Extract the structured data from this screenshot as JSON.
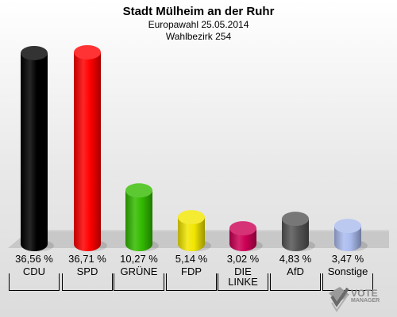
{
  "header": {
    "title": "Stadt Mülheim an der Ruhr",
    "subtitle1": "Europawahl 25.05.2014",
    "subtitle2": "Wahlbezirk 254"
  },
  "chart_data": {
    "type": "bar",
    "categories": [
      "CDU",
      "SPD",
      "GRÜNE",
      "FDP",
      "DIE LINKE",
      "AfD",
      "Sonstige"
    ],
    "category_lines": [
      [
        "CDU"
      ],
      [
        "SPD"
      ],
      [
        "GRÜNE"
      ],
      [
        "FDP"
      ],
      [
        "DIE",
        "LINKE"
      ],
      [
        "AfD"
      ],
      [
        "Sonstige"
      ]
    ],
    "values": [
      36.56,
      36.71,
      10.27,
      5.14,
      3.02,
      4.83,
      3.47
    ],
    "value_labels": [
      "36,56 %",
      "36,71 %",
      "10,27 %",
      "5,14 %",
      "3,02 %",
      "4,83 %",
      "3,47 %"
    ],
    "colors": [
      "#000000",
      "#ff0000",
      "#33bb00",
      "#f2e600",
      "#cc0055",
      "#555555",
      "#aabbee"
    ],
    "ylim": [
      0,
      36.71
    ]
  },
  "logo": {
    "line1": "VOTE",
    "line2": "MANAGER"
  }
}
